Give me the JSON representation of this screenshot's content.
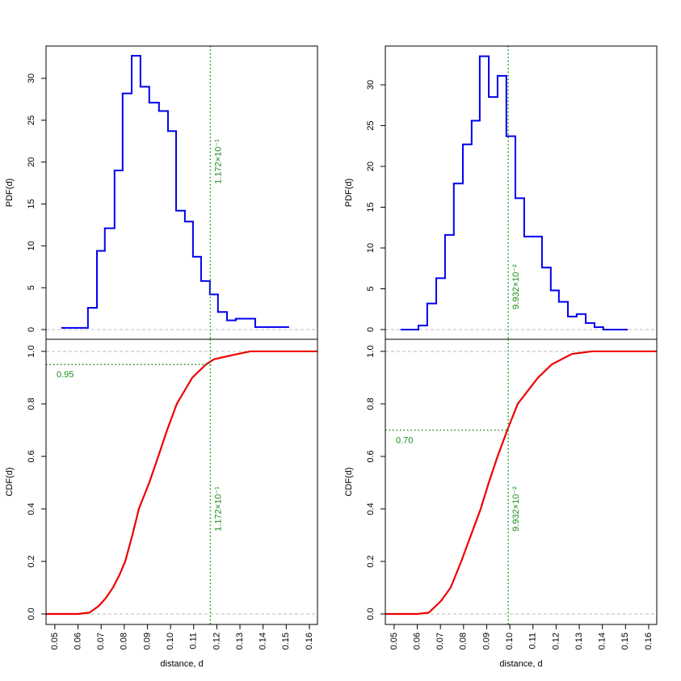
{
  "chart_data": [
    {
      "type": "histogram",
      "ylabel": "PDF(d)",
      "color": "#0000ee",
      "bins": [
        0.0531,
        0.0643,
        0.0682,
        0.0716,
        0.0758,
        0.0793,
        0.0832,
        0.087,
        0.0908,
        0.095,
        0.0989,
        0.1024,
        0.1062,
        0.1097,
        0.1132,
        0.117,
        0.1205,
        0.1244,
        0.1282,
        0.1366,
        0.1509
      ],
      "values": [
        0.2,
        2.6,
        9.4,
        12.1,
        19,
        28.2,
        32.7,
        29,
        27.1,
        26.1,
        23.7,
        14.2,
        12.9,
        8.7,
        5.8,
        4.2,
        2.1,
        1.1,
        1.3,
        0.3
      ],
      "xlim": [
        0.0462,
        0.1635
      ],
      "ylim": [
        -1.16,
        33.86
      ],
      "yticks": [
        0,
        5,
        10,
        15,
        20,
        25,
        30
      ],
      "baselines": [
        0
      ],
      "baseline_color": "#bbbbbb",
      "marker_color": "#1a8c1a",
      "vline": {
        "value": 0.1172,
        "label": "1.172×10⁻¹"
      }
    },
    {
      "type": "line",
      "ylabel": "CDF(d)",
      "xlabel": "distance, d",
      "x": [
        0.0462,
        0.06,
        0.065,
        0.0689,
        0.072,
        0.0751,
        0.078,
        0.0804,
        0.0835,
        0.0863,
        0.0908,
        0.0947,
        0.0985,
        0.1027,
        0.1094,
        0.1153,
        0.1188,
        0.129,
        0.1345,
        0.1635
      ],
      "series": [
        {
          "color": "#ee0000",
          "values": [
            0,
            0,
            0.005,
            0.03,
            0.06,
            0.1,
            0.15,
            0.2,
            0.3,
            0.4,
            0.5,
            0.6,
            0.7,
            0.8,
            0.9,
            0.95,
            0.97,
            0.99,
            1.0,
            1.0
          ]
        }
      ],
      "xlim": [
        0.0462,
        0.1635
      ],
      "ylim": [
        -0.04,
        1.046
      ],
      "xticks": [
        0.05,
        0.06,
        0.07,
        0.08,
        0.09,
        {
          "value": 0.1,
          "label": "0.10"
        },
        0.11,
        0.12,
        0.13,
        0.14,
        0.15,
        0.16
      ],
      "yticks": [
        {
          "value": 0,
          "label": "0.0"
        },
        0.2,
        0.4,
        0.6,
        0.8,
        {
          "value": 1,
          "label": "1.0"
        }
      ],
      "baselines": [
        0,
        1
      ],
      "baseline_color": "#bbbbbb",
      "marker_color": "#1a8c1a",
      "vline": {
        "value": 0.1172,
        "label": "1.172×10⁻¹"
      },
      "hline": {
        "value": 0.95,
        "label": "0.95"
      }
    },
    {
      "type": "histogram",
      "ylabel": "PDF(d)",
      "color": "#0000ee",
      "bins": [
        0.0531,
        0.0605,
        0.0643,
        0.0682,
        0.072,
        0.0758,
        0.0797,
        0.0835,
        0.087,
        0.0909,
        0.0947,
        0.0985,
        0.1024,
        0.1062,
        0.1101,
        0.1139,
        0.1177,
        0.1212,
        0.1251,
        0.1289,
        0.1328,
        0.1366,
        0.1404,
        0.1506
      ],
      "values": [
        0,
        0.5,
        3.2,
        6.3,
        11.6,
        17.9,
        22.7,
        25.6,
        33.5,
        28.5,
        31.1,
        23.7,
        16.1,
        11.4,
        11.4,
        7.6,
        4.8,
        3.4,
        1.6,
        1.9,
        0.8,
        0.3,
        0
      ],
      "xlim": [
        0.0462,
        0.1635
      ],
      "ylim": [
        -1.19,
        34.75
      ],
      "yticks": [
        0,
        5,
        10,
        15,
        20,
        25,
        30
      ],
      "baselines": [
        0
      ],
      "baseline_color": "#bbbbbb",
      "marker_color": "#1a8c1a",
      "vline": {
        "value": 0.09932,
        "label": "9.932×10⁻²"
      }
    },
    {
      "type": "line",
      "ylabel": "CDF(d)",
      "xlabel": "distance, d",
      "x": [
        0.0462,
        0.06,
        0.065,
        0.0703,
        0.0744,
        0.079,
        0.0832,
        0.0874,
        0.0909,
        0.0947,
        0.0989,
        0.1034,
        0.1122,
        0.1181,
        0.1268,
        0.1355,
        0.1635
      ],
      "series": [
        {
          "color": "#ee0000",
          "values": [
            0,
            0,
            0.005,
            0.05,
            0.1,
            0.2,
            0.3,
            0.4,
            0.5,
            0.6,
            0.7,
            0.8,
            0.9,
            0.95,
            0.99,
            1.0,
            1.0
          ]
        }
      ],
      "xlim": [
        0.0462,
        0.1635
      ],
      "ylim": [
        -0.04,
        1.046
      ],
      "xticks": [
        0.05,
        0.06,
        0.07,
        0.08,
        0.09,
        {
          "value": 0.1,
          "label": "0.10"
        },
        0.11,
        0.12,
        0.13,
        0.14,
        0.15,
        0.16
      ],
      "yticks": [
        {
          "value": 0,
          "label": "0.0"
        },
        0.2,
        0.4,
        0.6,
        0.8,
        {
          "value": 1,
          "label": "1.0"
        }
      ],
      "baselines": [
        0,
        1
      ],
      "baseline_color": "#bbbbbb",
      "marker_color": "#1a8c1a",
      "vline": {
        "value": 0.09932,
        "label": "9.932×10⁻²"
      },
      "hline": {
        "value": 0.7,
        "label": "0.70"
      }
    }
  ]
}
